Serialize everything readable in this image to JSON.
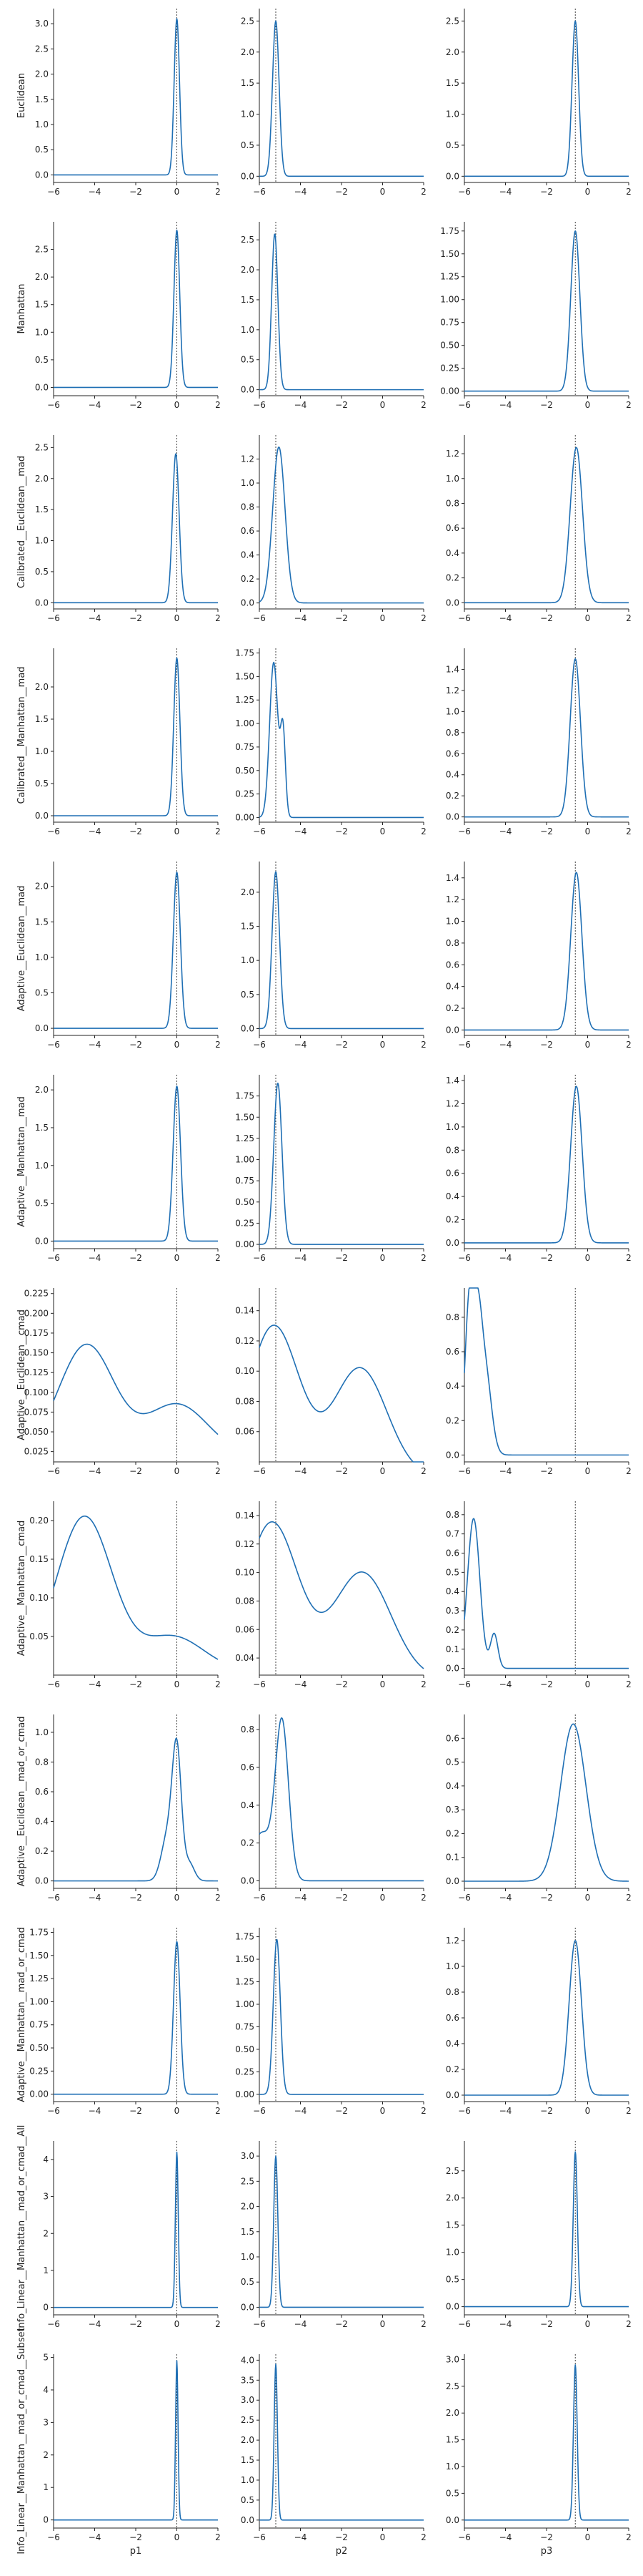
{
  "chart_data": {
    "type": "line",
    "description_free": true,
    "line_color": "#1f6fb4",
    "x_ticks": [
      -6,
      -4,
      -2,
      0,
      2
    ],
    "xlim": [
      -6,
      2
    ],
    "col_labels": [
      "p1",
      "p2",
      "p3"
    ],
    "true_values": [
      0,
      -5.2,
      -0.6
    ],
    "rows": [
      {
        "label": "Euclidean",
        "panels": [
          {
            "ylim": [
              -0.15,
              3.3
            ],
            "y_ticks": [
              0,
              0.5,
              1.0,
              1.5,
              2.0,
              2.5,
              3.0
            ],
            "peaks": [
              [
                0.0,
                0.13,
                3.1
              ]
            ],
            "baseline": 0
          },
          {
            "ylim": [
              -0.1,
              2.7
            ],
            "y_ticks": [
              0,
              0.5,
              1.0,
              1.5,
              2.0,
              2.5
            ],
            "peaks": [
              [
                -5.2,
                0.16,
                2.5
              ]
            ],
            "baseline": 0
          },
          {
            "ylim": [
              -0.1,
              2.7
            ],
            "y_ticks": [
              0,
              0.5,
              1.0,
              1.5,
              2.0,
              2.5
            ],
            "peaks": [
              [
                -0.6,
                0.16,
                2.5
              ]
            ],
            "baseline": 0
          }
        ]
      },
      {
        "label": "Manhattan",
        "panels": [
          {
            "ylim": [
              -0.15,
              3.0
            ],
            "y_ticks": [
              0,
              0.5,
              1.0,
              1.5,
              2.0,
              2.5
            ],
            "peaks": [
              [
                0.0,
                0.14,
                2.85
              ]
            ],
            "baseline": 0
          },
          {
            "ylim": [
              -0.1,
              2.8
            ],
            "y_ticks": [
              0,
              0.5,
              1.0,
              1.5,
              2.0,
              2.5
            ],
            "peaks": [
              [
                -5.25,
                0.15,
                2.6
              ]
            ],
            "baseline": 0
          },
          {
            "ylim": [
              -0.05,
              1.85
            ],
            "y_ticks": [
              0,
              0.25,
              0.5,
              0.75,
              1.0,
              1.25,
              1.5,
              1.75
            ],
            "peaks": [
              [
                -0.6,
                0.22,
                1.75
              ]
            ],
            "baseline": 0
          }
        ]
      },
      {
        "label": "Calibrated__Euclidean__mad",
        "panels": [
          {
            "ylim": [
              -0.1,
              2.7
            ],
            "y_ticks": [
              0,
              0.5,
              1.0,
              1.5,
              2.0,
              2.5
            ],
            "peaks": [
              [
                -0.05,
                0.16,
                2.4
              ]
            ],
            "baseline": 0
          },
          {
            "ylim": [
              -0.05,
              1.4
            ],
            "y_ticks": [
              0,
              0.2,
              0.4,
              0.6,
              0.8,
              1.0,
              1.2
            ],
            "peaks": [
              [
                -5.05,
                0.3,
                1.3
              ]
            ],
            "baseline": 0
          },
          {
            "ylim": [
              -0.05,
              1.35
            ],
            "y_ticks": [
              0,
              0.2,
              0.4,
              0.6,
              0.8,
              1.0,
              1.2
            ],
            "peaks": [
              [
                -0.55,
                0.3,
                1.25
              ]
            ],
            "baseline": 0
          }
        ]
      },
      {
        "label": "Calibrated__Manhattan__mad",
        "panels": [
          {
            "ylim": [
              -0.1,
              2.6
            ],
            "y_ticks": [
              0,
              0.5,
              1.0,
              1.5,
              2.0
            ],
            "peaks": [
              [
                0.0,
                0.15,
                2.45
              ]
            ],
            "baseline": 0
          },
          {
            "ylim": [
              -0.05,
              1.8
            ],
            "y_ticks": [
              0,
              0.25,
              0.5,
              0.75,
              1.0,
              1.25,
              1.5,
              1.75
            ],
            "peaks": [
              [
                -5.3,
                0.2,
                1.65
              ],
              [
                -4.85,
                0.12,
                0.9
              ]
            ],
            "baseline": 0
          },
          {
            "ylim": [
              -0.05,
              1.6
            ],
            "y_ticks": [
              0,
              0.2,
              0.4,
              0.6,
              0.8,
              1.0,
              1.2,
              1.4
            ],
            "peaks": [
              [
                -0.6,
                0.25,
                1.5
              ]
            ],
            "baseline": 0
          }
        ]
      },
      {
        "label": "Adaptive__Euclidean__mad",
        "panels": [
          {
            "ylim": [
              -0.1,
              2.35
            ],
            "y_ticks": [
              0,
              0.5,
              1.0,
              1.5,
              2.0
            ],
            "peaks": [
              [
                0.0,
                0.17,
                2.2
              ]
            ],
            "baseline": 0
          },
          {
            "ylim": [
              -0.1,
              2.45
            ],
            "y_ticks": [
              0,
              0.5,
              1.0,
              1.5,
              2.0
            ],
            "peaks": [
              [
                -5.2,
                0.18,
                2.3
              ]
            ],
            "baseline": 0
          },
          {
            "ylim": [
              -0.05,
              1.55
            ],
            "y_ticks": [
              0,
              0.2,
              0.4,
              0.6,
              0.8,
              1.0,
              1.2,
              1.4
            ],
            "peaks": [
              [
                -0.55,
                0.27,
                1.45
              ]
            ],
            "baseline": 0
          }
        ]
      },
      {
        "label": "Adaptive__Manhattan__mad",
        "panels": [
          {
            "ylim": [
              -0.1,
              2.2
            ],
            "y_ticks": [
              0,
              0.5,
              1.0,
              1.5,
              2.0
            ],
            "peaks": [
              [
                0.0,
                0.18,
                2.05
              ]
            ],
            "baseline": 0
          },
          {
            "ylim": [
              -0.05,
              2.0
            ],
            "y_ticks": [
              0,
              0.25,
              0.5,
              0.75,
              1.0,
              1.25,
              1.5,
              1.75
            ],
            "peaks": [
              [
                -5.1,
                0.2,
                1.9
              ]
            ],
            "baseline": 0
          },
          {
            "ylim": [
              -0.05,
              1.45
            ],
            "y_ticks": [
              0,
              0.2,
              0.4,
              0.6,
              0.8,
              1.0,
              1.2,
              1.4
            ],
            "peaks": [
              [
                -0.55,
                0.28,
                1.35
              ]
            ],
            "baseline": 0
          }
        ]
      },
      {
        "label": "Adaptive__Euclidean__cmad",
        "panels": [
          {
            "ylim": [
              0.012,
              0.232
            ],
            "y_ticks": [
              0.025,
              0.05,
              0.075,
              0.1,
              0.125,
              0.15,
              0.175,
              0.2,
              0.225
            ],
            "peaks": [
              [
                -4.4,
                1.35,
                0.14
              ],
              [
                0.0,
                1.5,
                0.065
              ]
            ],
            "baseline": 0.02
          },
          {
            "ylim": [
              0.04,
              0.155
            ],
            "y_ticks": [
              0.06,
              0.08,
              0.1,
              0.12,
              0.14
            ],
            "peaks": [
              [
                -5.3,
                1.25,
                0.1
              ],
              [
                -1.1,
                1.3,
                0.072
              ]
            ],
            "baseline": 0.03
          },
          {
            "ylim": [
              -0.04,
              0.97
            ],
            "y_ticks": [
              0,
              0.2,
              0.4,
              0.6,
              0.8
            ],
            "peaks": [
              [
                -5.75,
                0.22,
                0.9
              ],
              [
                -5.35,
                0.2,
                0.55
              ],
              [
                -5.0,
                0.3,
                0.5
              ]
            ],
            "baseline": 0
          }
        ]
      },
      {
        "label": "Adaptive__Manhattan__cmad",
        "panels": [
          {
            "ylim": [
              0.0,
              0.225
            ],
            "y_ticks": [
              0.05,
              0.1,
              0.15,
              0.2
            ],
            "peaks": [
              [
                -4.5,
                1.35,
                0.2
              ],
              [
                -0.2,
                1.5,
                0.045
              ]
            ],
            "baseline": 0.005
          },
          {
            "ylim": [
              0.028,
              0.15
            ],
            "y_ticks": [
              0.04,
              0.06,
              0.08,
              0.1,
              0.12,
              0.14
            ],
            "peaks": [
              [
                -5.4,
                1.3,
                0.11
              ],
              [
                -1.0,
                1.4,
                0.075
              ]
            ],
            "baseline": 0.025
          },
          {
            "ylim": [
              -0.035,
              0.87
            ],
            "y_ticks": [
              0,
              0.1,
              0.2,
              0.3,
              0.4,
              0.5,
              0.6,
              0.7,
              0.8
            ],
            "peaks": [
              [
                -5.55,
                0.3,
                0.78
              ],
              [
                -4.55,
                0.18,
                0.18
              ]
            ],
            "baseline": 0
          }
        ]
      },
      {
        "label": "Adaptive__Euclidean__mad_or_cmad",
        "panels": [
          {
            "ylim": [
              -0.05,
              1.12
            ],
            "y_ticks": [
              0,
              0.2,
              0.4,
              0.6,
              0.8,
              1.0
            ],
            "peaks": [
              [
                0.0,
                0.22,
                0.85
              ],
              [
                -0.45,
                0.3,
                0.3
              ],
              [
                0.6,
                0.25,
                0.12
              ]
            ],
            "baseline": 0
          },
          {
            "ylim": [
              -0.04,
              0.88
            ],
            "y_ticks": [
              0,
              0.2,
              0.4,
              0.6,
              0.8
            ],
            "peaks": [
              [
                -4.9,
                0.32,
                0.84
              ],
              [
                -5.9,
                0.45,
                0.25
              ]
            ],
            "baseline": 0
          },
          {
            "ylim": [
              -0.03,
              0.7
            ],
            "y_ticks": [
              0,
              0.1,
              0.2,
              0.3,
              0.4,
              0.5,
              0.6
            ],
            "peaks": [
              [
                -0.7,
                0.62,
                0.66
              ]
            ],
            "baseline": 0
          }
        ]
      },
      {
        "label": "Adaptive__Manhattan__mad_or_cmad",
        "panels": [
          {
            "ylim": [
              -0.08,
              1.8
            ],
            "y_ticks": [
              0,
              0.25,
              0.5,
              0.75,
              1.0,
              1.25,
              1.5,
              1.75
            ],
            "peaks": [
              [
                0.0,
                0.16,
                1.65
              ]
            ],
            "baseline": 0
          },
          {
            "ylim": [
              -0.08,
              1.85
            ],
            "y_ticks": [
              0,
              0.25,
              0.5,
              0.75,
              1.0,
              1.25,
              1.5,
              1.75
            ],
            "peaks": [
              [
                -5.15,
                0.17,
                1.72
              ]
            ],
            "baseline": 0
          },
          {
            "ylim": [
              -0.05,
              1.3
            ],
            "y_ticks": [
              0,
              0.2,
              0.4,
              0.6,
              0.8,
              1.0,
              1.2
            ],
            "peaks": [
              [
                -0.6,
                0.3,
                1.2
              ]
            ],
            "baseline": 0
          }
        ]
      },
      {
        "label": "Info_Linear__Manhattan__mad_or_cmad__All",
        "panels": [
          {
            "ylim": [
              -0.2,
              4.5
            ],
            "y_ticks": [
              0,
              1,
              2,
              3,
              4
            ],
            "peaks": [
              [
                0.0,
                0.07,
                4.2
              ]
            ],
            "baseline": 0
          },
          {
            "ylim": [
              -0.15,
              3.3
            ],
            "y_ticks": [
              0,
              0.5,
              1.0,
              1.5,
              2.0,
              2.5,
              3.0
            ],
            "peaks": [
              [
                -5.2,
                0.1,
                3.0
              ]
            ],
            "baseline": 0
          },
          {
            "ylim": [
              -0.15,
              3.05
            ],
            "y_ticks": [
              0,
              0.5,
              1.0,
              1.5,
              2.0,
              2.5
            ],
            "peaks": [
              [
                -0.6,
                0.1,
                2.85
              ]
            ],
            "baseline": 0
          }
        ]
      },
      {
        "label": "Info_Linear__Manhattan__mad_or_cmad__Subset",
        "panels": [
          {
            "ylim": [
              -0.25,
              5.1
            ],
            "y_ticks": [
              0,
              1,
              2,
              3,
              4,
              5
            ],
            "peaks": [
              [
                0.0,
                0.06,
                4.9
              ]
            ],
            "baseline": 0
          },
          {
            "ylim": [
              -0.2,
              4.15
            ],
            "y_ticks": [
              0,
              0.5,
              1.0,
              1.5,
              2.0,
              2.5,
              3.0,
              3.5,
              4.0
            ],
            "peaks": [
              [
                -5.2,
                0.08,
                3.9
              ]
            ],
            "baseline": 0
          },
          {
            "ylim": [
              -0.15,
              3.1
            ],
            "y_ticks": [
              0,
              0.5,
              1.0,
              1.5,
              2.0,
              2.5,
              3.0
            ],
            "peaks": [
              [
                -0.6,
                0.09,
                2.9
              ]
            ],
            "baseline": 0
          }
        ]
      }
    ]
  }
}
